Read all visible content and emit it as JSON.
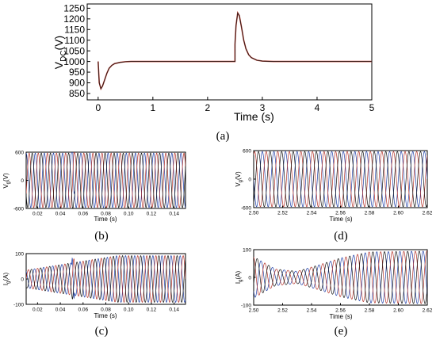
{
  "figure": {
    "panel_labels": [
      "(a)",
      "(b)",
      "(c)",
      "(d)",
      "(e)"
    ]
  },
  "chart_data": [
    {
      "id": "a",
      "type": "line",
      "title": "",
      "xlabel": "Time (s)",
      "ylabel_main": "V",
      "ylabel_sub": "DC",
      "ylabel_unit": "(V)",
      "xlim": [
        -0.2,
        5
      ],
      "ylim": [
        820,
        1270
      ],
      "xticks": [
        0,
        1,
        2,
        3,
        4,
        5
      ],
      "yticks": [
        850,
        900,
        950,
        1000,
        1050,
        1100,
        1150,
        1200,
        1250
      ],
      "grid": false,
      "series": [
        {
          "color": "#1a1a1a",
          "secondary_color": "#c0392b",
          "x": [
            0,
            0.02,
            0.05,
            0.08,
            0.12,
            0.16,
            0.2,
            0.25,
            0.3,
            0.4,
            0.5,
            0.6,
            1.0,
            1.5,
            2.0,
            2.4,
            2.5,
            2.5,
            2.52,
            2.55,
            2.58,
            2.62,
            2.66,
            2.7,
            2.75,
            2.8,
            2.9,
            3.0,
            3.2,
            4.0,
            5.0
          ],
          "values": [
            1000,
            900,
            872,
            885,
            915,
            945,
            968,
            982,
            990,
            996,
            999,
            1000,
            1000,
            1000,
            1000,
            1000,
            1000,
            1080,
            1170,
            1228,
            1215,
            1160,
            1100,
            1060,
            1032,
            1018,
            1006,
            1002,
            1000,
            1000,
            1000
          ]
        }
      ]
    },
    {
      "id": "b",
      "type": "line",
      "xlabel": "Time (s)",
      "ylabel_main": "V",
      "ylabel_sub": "g",
      "ylabel_unit": "(V)",
      "xlim": [
        0.01,
        0.15
      ],
      "ylim": [
        -600,
        600
      ],
      "xticks": [
        0.02,
        0.04,
        0.06,
        0.08,
        0.1,
        0.12,
        0.14
      ],
      "xtick_labels": [
        "0.02",
        "0.04",
        "0.06",
        "0.08",
        "0.10",
        "0.12",
        "0.14"
      ],
      "yticks": [
        -600,
        0,
        600
      ],
      "grid": false,
      "waveform": {
        "kind": "three_phase_sine",
        "frequency_hz": 125,
        "amplitude": 580,
        "phases_deg": [
          0,
          -120,
          120
        ],
        "colors": [
          "#1f3fa8",
          "#b5332a",
          "#111111"
        ],
        "disturbance_at": 0.05
      }
    },
    {
      "id": "c",
      "type": "line",
      "xlabel": "Time (s)",
      "ylabel_main": "I",
      "ylabel_sub": "g",
      "ylabel_unit": "(A)",
      "xlim": [
        0.01,
        0.15
      ],
      "ylim": [
        -100,
        100
      ],
      "xticks": [
        0.02,
        0.04,
        0.06,
        0.08,
        0.1,
        0.12,
        0.14
      ],
      "xtick_labels": [
        "0.02",
        "0.04",
        "0.06",
        "0.08",
        "0.10",
        "0.12",
        "0.14"
      ],
      "yticks": [
        -100,
        0,
        100
      ],
      "grid": false,
      "waveform": {
        "kind": "three_phase_sine",
        "frequency_hz": 125,
        "amplitude_start": 35,
        "amplitude_end": 92,
        "ramp_end": 0.09,
        "phases_deg": [
          30,
          -90,
          150
        ],
        "colors": [
          "#1f3fa8",
          "#b5332a",
          "#111111"
        ],
        "disturbance_at": 0.05
      }
    },
    {
      "id": "d",
      "type": "line",
      "xlabel": "Time (s)",
      "ylabel_main": "V",
      "ylabel_sub": "g",
      "ylabel_unit": "(V)",
      "xlim": [
        2.5,
        2.62
      ],
      "ylim": [
        -600,
        600
      ],
      "xticks": [
        2.5,
        2.52,
        2.54,
        2.56,
        2.58,
        2.6,
        2.62
      ],
      "xtick_labels": [
        "2.50",
        "2.52",
        "2.54",
        "2.56",
        "2.58",
        "2.60",
        "2.62"
      ],
      "yticks": [
        -600,
        0,
        600
      ],
      "grid": false,
      "waveform": {
        "kind": "three_phase_sine",
        "frequency_hz": 125,
        "amplitude": 580,
        "phases_deg": [
          0,
          -120,
          120
        ],
        "colors": [
          "#1f3fa8",
          "#b5332a",
          "#111111"
        ]
      }
    },
    {
      "id": "e",
      "type": "line",
      "xlabel": "Time (s)",
      "ylabel_main": "I",
      "ylabel_sub": "g",
      "ylabel_unit": "(A)",
      "xlim": [
        2.5,
        2.62
      ],
      "ylim": [
        -100,
        100
      ],
      "xticks": [
        2.5,
        2.52,
        2.54,
        2.56,
        2.58,
        2.6,
        2.62
      ],
      "xtick_labels": [
        "2.50",
        "2.52",
        "2.54",
        "2.56",
        "2.58",
        "2.60",
        "2.62"
      ],
      "yticks": [
        -100,
        0,
        100
      ],
      "grid": false,
      "waveform": {
        "kind": "three_phase_sine",
        "frequency_hz": 125,
        "amplitude_envelope": [
          [
            2.5,
            75
          ],
          [
            2.515,
            30
          ],
          [
            2.53,
            22
          ],
          [
            2.545,
            45
          ],
          [
            2.56,
            70
          ],
          [
            2.58,
            92
          ],
          [
            2.62,
            95
          ]
        ],
        "phases_deg": [
          40,
          -80,
          160
        ],
        "colors": [
          "#1f3fa8",
          "#b5332a",
          "#111111"
        ]
      }
    }
  ]
}
